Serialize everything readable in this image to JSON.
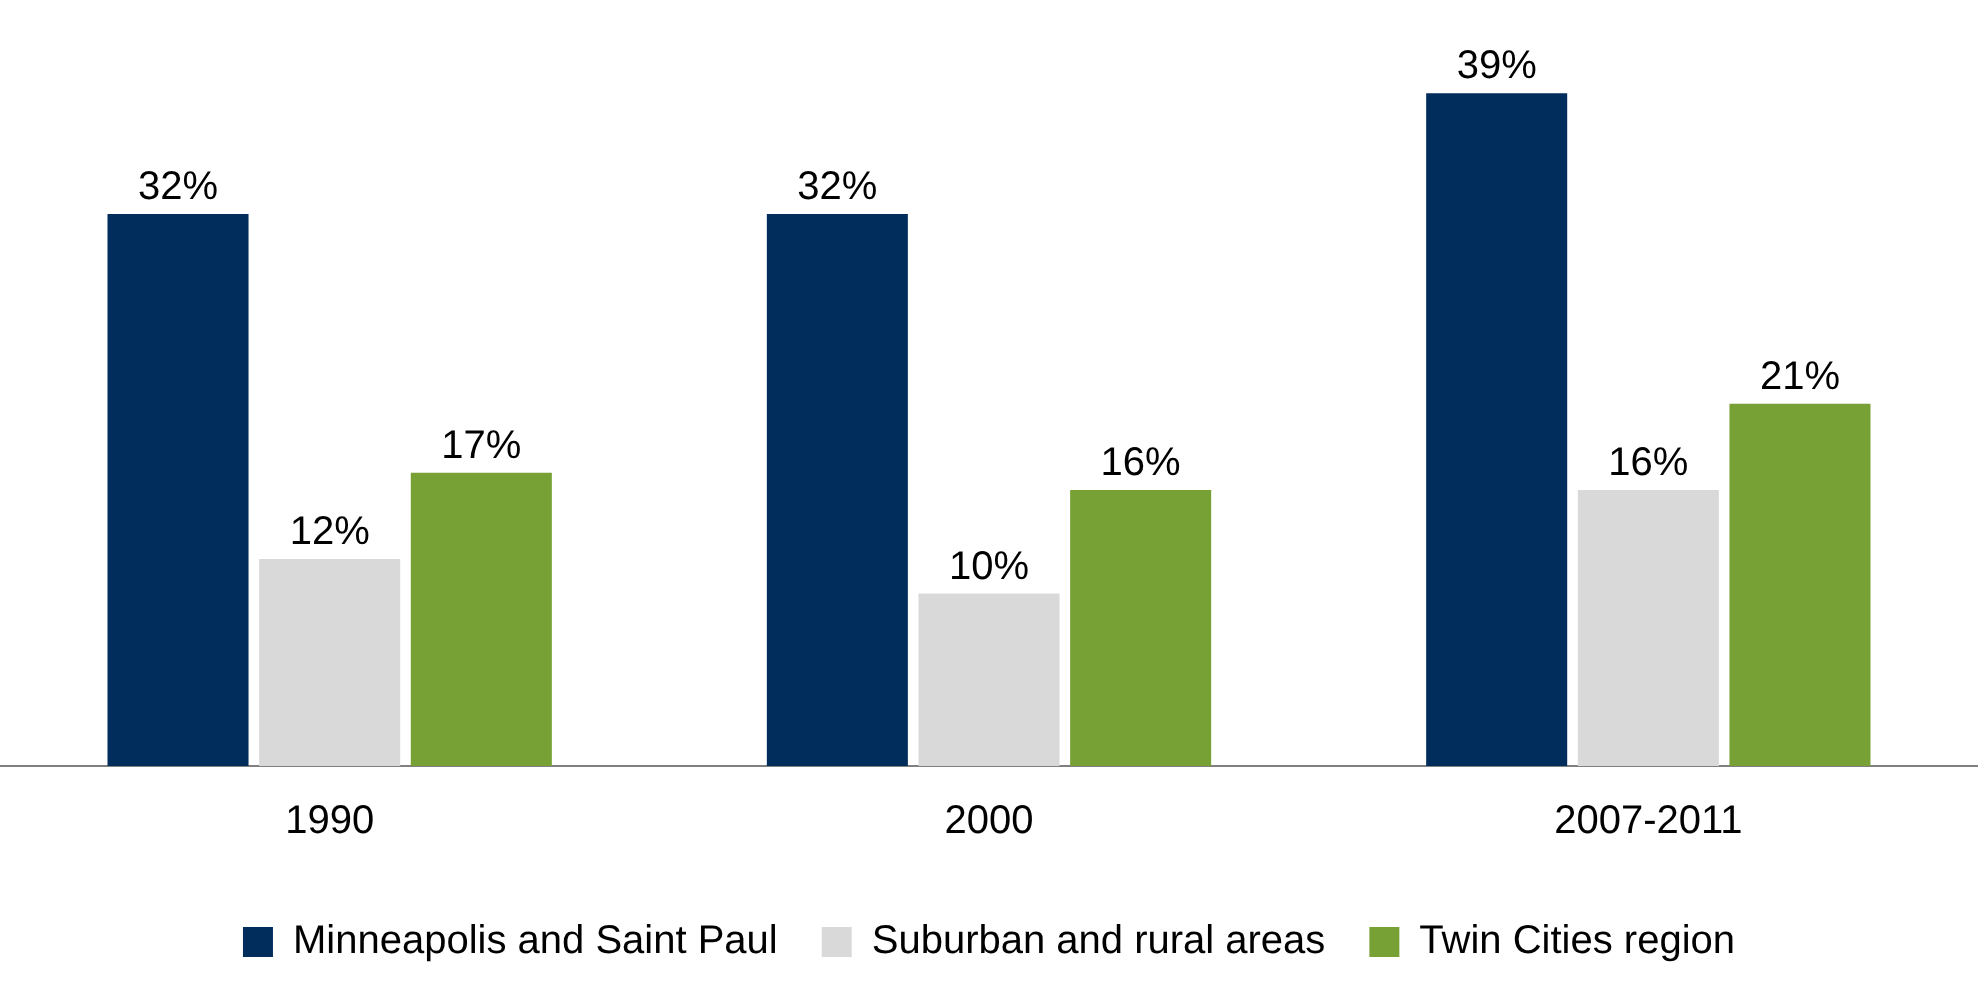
{
  "chart_data": {
    "type": "bar",
    "categories": [
      "1990",
      "2000",
      "2007-2011"
    ],
    "series": [
      {
        "name": "Minneapolis and Saint Paul",
        "color": "#002d5c",
        "values": [
          32,
          32,
          39
        ],
        "value_labels": [
          "32%",
          "32%",
          "39%"
        ]
      },
      {
        "name": "Suburban and rural areas",
        "color": "#d9d9d9",
        "values": [
          12,
          10,
          16
        ],
        "value_labels": [
          "12%",
          "10%",
          "16%"
        ]
      },
      {
        "name": "Twin Cities region",
        "color": "#77a135",
        "values": [
          17,
          16,
          21
        ],
        "value_labels": [
          "17%",
          "16%",
          "21%"
        ]
      }
    ],
    "legend": "bottom",
    "grid": false
  }
}
